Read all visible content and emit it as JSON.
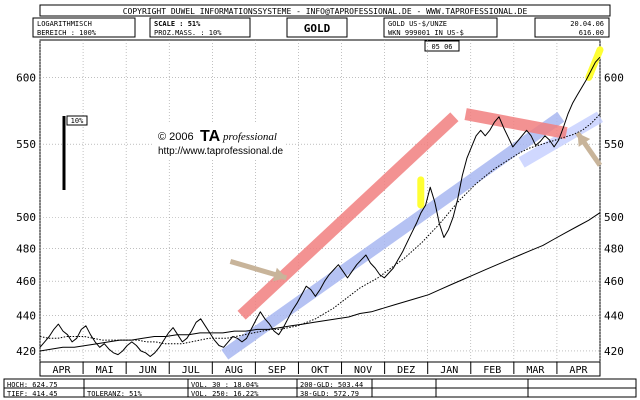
{
  "header": {
    "copyright": "COPYRIGHT  DUWEL INFORMATIONSSYSTEME - INFO@TAPROFESSIONAL.DE - WWW.TAPROFESSIONAL.DE",
    "logarithmisch": "LOGARITHMISCH",
    "bereich": "BEREICH  :  100%",
    "scale": "SCALE : 51%",
    "prozmass": "PROZ.MASS. : 10%",
    "title": "GOLD",
    "instrument": "GOLD US-$/UNZE",
    "wkn": "WKN 999001   IN US-$",
    "date": "20.04.06",
    "last_price": "616.00",
    "period_badge": "05 06"
  },
  "chart_data": {
    "type": "line",
    "title": "GOLD",
    "y_scale": "log",
    "ylim": [
      414,
      630
    ],
    "y_ticks": [
      420,
      440,
      460,
      480,
      500,
      550,
      600
    ],
    "x_labels": [
      "APR",
      "MAI",
      "JUN",
      "JUL",
      "AUG",
      "SEP",
      "OKT",
      "NOV",
      "DEZ",
      "JAN",
      "FEB",
      "MAR",
      "APR"
    ],
    "series": [
      {
        "type": "price",
        "color": "#000000",
        "values": [
          422,
          425,
          428,
          432,
          435,
          431,
          429,
          425,
          427,
          432,
          434,
          429,
          425,
          422,
          424,
          421,
          419,
          418,
          420,
          423,
          425,
          423,
          420,
          419,
          417,
          419,
          422,
          426,
          430,
          433,
          429,
          425,
          427,
          431,
          436,
          438,
          434,
          430,
          426,
          423,
          422,
          425,
          428,
          427,
          425,
          427,
          432,
          437,
          442,
          438,
          435,
          431,
          429,
          433,
          438,
          443,
          447,
          452,
          457,
          455,
          451,
          455,
          460,
          464,
          467,
          470,
          466,
          462,
          466,
          470,
          473,
          476,
          471,
          468,
          464,
          462,
          465,
          468,
          473,
          478,
          484,
          490,
          496,
          503,
          508,
          520,
          510,
          496,
          487,
          492,
          500,
          512,
          528,
          540,
          548,
          556,
          560,
          556,
          560,
          566,
          570,
          562,
          555,
          548,
          552,
          556,
          560,
          556,
          549,
          552,
          556,
          553,
          548,
          553,
          562,
          572,
          580,
          586,
          592,
          598,
          605,
          612,
          616
        ]
      },
      {
        "type": "moving_average",
        "label": "38-GLD",
        "color": "#000000",
        "style": "dotted",
        "values": [
          428,
          427,
          427,
          428,
          428,
          428,
          427,
          426,
          426,
          426,
          426,
          426,
          425,
          425,
          424,
          424,
          424,
          425,
          426,
          427,
          427,
          427,
          428,
          429,
          430,
          431,
          432,
          432,
          433,
          434,
          436,
          438,
          441,
          444,
          448,
          452,
          456,
          459,
          462,
          466,
          470,
          474,
          479,
          484,
          490,
          496,
          503,
          510,
          516,
          522,
          527,
          532,
          536,
          540,
          544,
          547,
          549,
          551,
          553,
          555,
          557,
          560,
          565,
          572
        ]
      },
      {
        "type": "moving_average",
        "label": "200-GLD",
        "color": "#000000",
        "style": "solid",
        "values": [
          420,
          421,
          422,
          422,
          423,
          424,
          425,
          426,
          426,
          427,
          428,
          428,
          429,
          429,
          430,
          430,
          430,
          431,
          431,
          432,
          432,
          433,
          434,
          435,
          436,
          437,
          438,
          439,
          441,
          442,
          444,
          446,
          448,
          450,
          452,
          455,
          458,
          461,
          464,
          467,
          470,
          473,
          476,
          479,
          482,
          486,
          490,
          494,
          498,
          503
        ]
      }
    ],
    "channels": [
      {
        "color": "#f28080",
        "from": [
          0.36,
          440
        ],
        "to": [
          0.74,
          570
        ]
      },
      {
        "color": "#a9b8f2",
        "from": [
          0.33,
          418
        ],
        "to": [
          0.93,
          570
        ]
      },
      {
        "color": "#c8d2ff",
        "from": [
          0.86,
          537
        ],
        "to": [
          1.0,
          570
        ]
      },
      {
        "color": "#f28080",
        "from": [
          0.76,
          572
        ],
        "to": [
          0.94,
          558
        ]
      }
    ],
    "arrows": [
      {
        "color": "#c8b49a",
        "from": [
          0.34,
          472
        ],
        "to": [
          0.44,
          462
        ]
      },
      {
        "color": "#c8b49a",
        "from": [
          1.0,
          535
        ],
        "to": [
          0.96,
          558
        ]
      }
    ],
    "highlights": [
      {
        "color": "#ffff33",
        "from": [
          0.68,
          508
        ],
        "to": [
          0.68,
          525
        ]
      },
      {
        "color": "#ffff33",
        "from": [
          0.98,
          600
        ],
        "to": [
          1.0,
          622
        ]
      }
    ],
    "scale_bar_label": "10%",
    "watermark": {
      "copyright": "© 2006",
      "brand": "TA",
      "brand_suffix": "professional",
      "url": "http://www.taprofessional.de"
    }
  },
  "footer": {
    "rows": [
      [
        "HOCH:  624.75",
        "VOL. 30  : 18.04%",
        "200-GLD: 503.44"
      ],
      [
        "TIEF:  414.45",
        "TOLERANZ: 51%",
        "VOL. 250: 16.22%",
        "38-GLD: 572.79"
      ]
    ]
  }
}
